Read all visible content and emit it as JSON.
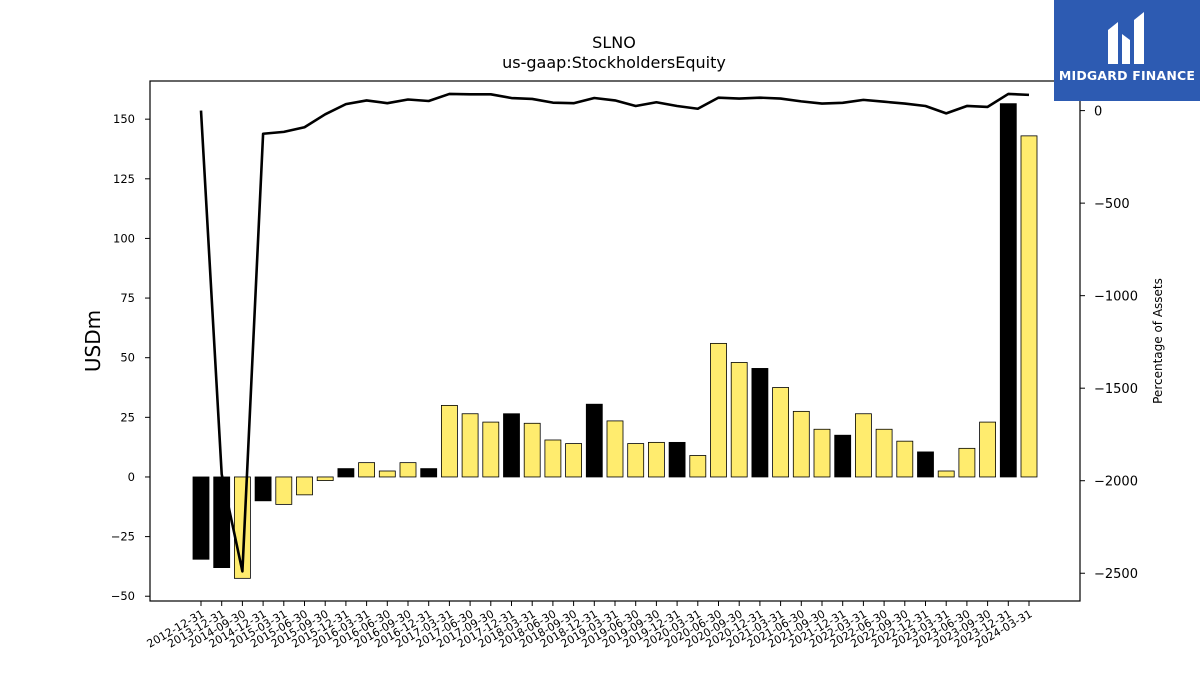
{
  "chart_data": {
    "type": "bar",
    "title": "SLNO",
    "subtitle": "us-gaap:StockholdersEquity",
    "ylabel": "USDm",
    "y2label": "Percentage of Assets",
    "ylim": [
      -52,
      166
    ],
    "y2lim": [
      -2650,
      160
    ],
    "yticks": [
      -50,
      -25,
      0,
      25,
      50,
      75,
      100,
      125,
      150
    ],
    "y2ticks": [
      -2500,
      -2000,
      -1500,
      -1000,
      -500,
      0
    ],
    "colors": {
      "bar_annual": "#000000",
      "bar_quarter": "#ffec6e",
      "line": "#000000"
    },
    "categories": [
      "2012-12-31",
      "2013-12-31",
      "2014-09-30",
      "2014-12-31",
      "2015-03-31",
      "2015-06-30",
      "2015-09-30",
      "2015-12-31",
      "2016-03-31",
      "2016-06-30",
      "2016-09-30",
      "2016-12-31",
      "2017-03-31",
      "2017-06-30",
      "2017-09-30",
      "2017-12-31",
      "2018-03-31",
      "2018-06-30",
      "2018-09-30",
      "2018-12-31",
      "2019-03-31",
      "2019-06-30",
      "2019-09-30",
      "2019-12-31",
      "2020-03-31",
      "2020-06-30",
      "2020-09-30",
      "2020-12-31",
      "2021-03-31",
      "2021-06-30",
      "2021-09-30",
      "2021-12-31",
      "2022-03-31",
      "2022-06-30",
      "2022-09-30",
      "2022-12-31",
      "2023-03-31",
      "2023-06-30",
      "2023-09-30",
      "2023-12-31",
      "2024-03-31"
    ],
    "series": [
      {
        "type": "bar",
        "values": [
          -34.5,
          -38,
          -42.5,
          -10,
          -11.5,
          -7.5,
          -1.5,
          3.5,
          6,
          2.5,
          6,
          3.5,
          30,
          26.5,
          23,
          26.5,
          22.5,
          15.5,
          14,
          30.5,
          23.5,
          14,
          14.5,
          14.5,
          9,
          56,
          48,
          45.5,
          37.5,
          27.5,
          20,
          17.5,
          26.5,
          20,
          15,
          10.5,
          2.5,
          12,
          23,
          156.5,
          143
        ],
        "period": [
          "annual",
          "annual",
          "quarter",
          "annual",
          "quarter",
          "quarter",
          "quarter",
          "annual",
          "quarter",
          "quarter",
          "quarter",
          "annual",
          "quarter",
          "quarter",
          "quarter",
          "annual",
          "quarter",
          "quarter",
          "quarter",
          "annual",
          "quarter",
          "quarter",
          "quarter",
          "annual",
          "quarter",
          "quarter",
          "quarter",
          "annual",
          "quarter",
          "quarter",
          "quarter",
          "annual",
          "quarter",
          "quarter",
          "quarter",
          "annual",
          "quarter",
          "quarter",
          "quarter",
          "annual",
          "quarter"
        ]
      },
      {
        "type": "line",
        "axis": "right",
        "values": [
          0,
          -1965,
          -2490,
          -125,
          -115,
          -90,
          -20,
          35,
          55,
          40,
          60,
          52,
          90,
          88,
          88,
          68,
          63,
          43,
          40,
          68,
          55,
          25,
          45,
          25,
          10,
          70,
          65,
          70,
          65,
          50,
          38,
          42,
          58,
          48,
          38,
          25,
          -15,
          25,
          20,
          90,
          85
        ]
      }
    ]
  },
  "logo": {
    "text": "MIDGARD FINANCE"
  }
}
